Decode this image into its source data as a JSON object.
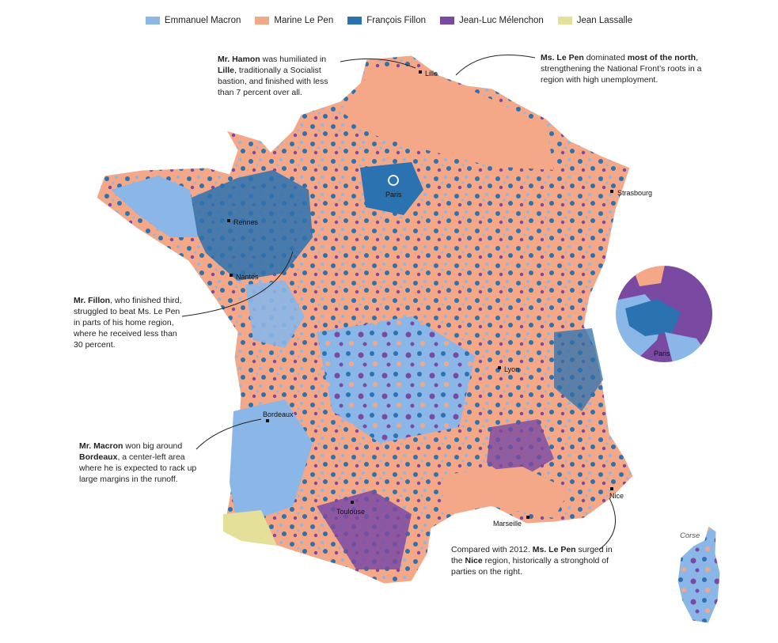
{
  "legend": [
    {
      "label": "Emmanuel Macron",
      "color": "#8ab6e8"
    },
    {
      "label": "Marine Le Pen",
      "color": "#f4a887"
    },
    {
      "label": "François Fillon",
      "color": "#2b72b0"
    },
    {
      "label": "Jean-Luc Mélenchon",
      "color": "#7a4aa3"
    },
    {
      "label": "Jean Lassalle",
      "color": "#e4e09a"
    }
  ],
  "cities": {
    "lille": "Lille",
    "paris": "Paris",
    "strasbourg": "Strasbourg",
    "rennes": "Rennes",
    "nantes": "Nantes",
    "lyon": "Lyon",
    "bordeaux": "Bordeaux",
    "toulouse": "Toulouse",
    "marseille": "Marseille",
    "nice": "Nice"
  },
  "inset": {
    "paris_label": "Paris",
    "corse_label": "Corse"
  },
  "annotations": {
    "hamon": {
      "name": "Mr. Hamon",
      "t1": " was humiliated in ",
      "city": "Lille",
      "t2": ", traditionally a Socialist bastion, and finished with less than 7 percent over all."
    },
    "lepen_north": {
      "name": "Ms. Le Pen",
      "t1": " dominated ",
      "bold": "most of the north",
      "t2": ", strengthening the National Front’s roots in a region with high unemployment."
    },
    "fillon": {
      "name": "Mr. Fillon",
      "t1": ", who finished third, struggled to beat Ms. Le Pen in parts of his home region, where he received less than 30 percent."
    },
    "macron": {
      "name": "Mr. Macron",
      "t1": " won big around ",
      "city": "Bordeaux",
      "t2": ", a center-left area where he is expected to rack up large margins in the runoff."
    },
    "lepen_nice": {
      "t0": "Compared with 2012. ",
      "name": "Ms. Le Pen",
      "t1": " surged in the ",
      "city": "Nice",
      "t2": " region, historically a stronghold of parties on the right."
    }
  }
}
